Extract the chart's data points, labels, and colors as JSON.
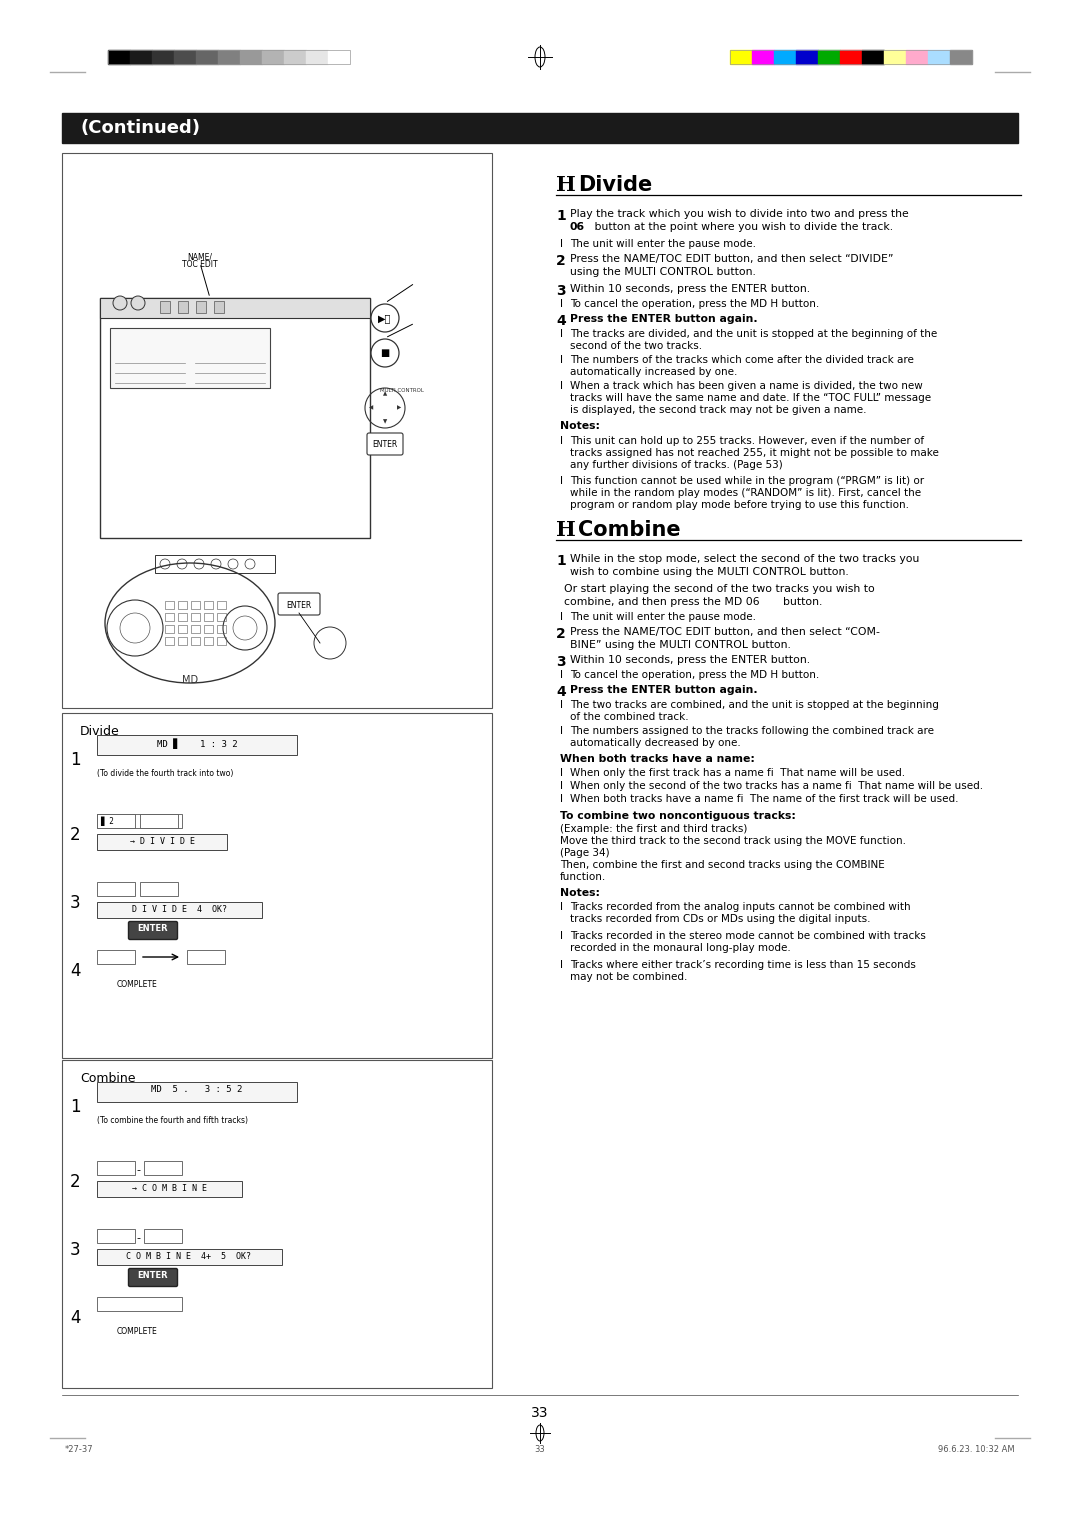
{
  "page_number": "33",
  "footer_left": "*27-37",
  "footer_center": "33",
  "footer_right": "96.6.23. 10:32 AM",
  "continued_text": "(Continued)",
  "bg_color": "#ffffff",
  "header_bg": "#1a1a1a",
  "header_text": "#ffffff",
  "grayscale_colors": [
    "#000000",
    "#1a1a1a",
    "#333333",
    "#4d4d4d",
    "#666666",
    "#808080",
    "#999999",
    "#b3b3b3",
    "#cccccc",
    "#e6e6e6",
    "#ffffff"
  ],
  "color_bars": [
    "#ffff00",
    "#ff00ff",
    "#00aaff",
    "#0000cc",
    "#00aa00",
    "#ff0000",
    "#000000",
    "#ffff99",
    "#ffaacc",
    "#aaddff",
    "#888888"
  ],
  "when_both_title": "When both tracks have a name:",
  "when_both_items": [
    "When only the first track has a name fi  That name will be used.",
    "When only the second of the two tracks has a name fi  That name will be used.",
    "When both tracks have a name fi  The name of the first track will be used."
  ],
  "noncontiguous_title": "To combine two noncontiguous tracks:",
  "noncontiguous_lines": [
    "(Example: the first and third tracks)",
    "Move the third track to the second track using the MOVE function.",
    "(Page 34)",
    "Then, combine the first and second tracks using the COMBINE",
    "function."
  ],
  "combine_notes": [
    "Tracks recorded from the analog inputs cannot be combined with tracks recorded from CDs or MDs using the digital inputs.",
    "Tracks recorded in the stereo mode cannot be combined with tracks recorded in the monaural long-play mode.",
    "Tracks where either track’s recording time is less than 15 seconds may not be combined."
  ]
}
